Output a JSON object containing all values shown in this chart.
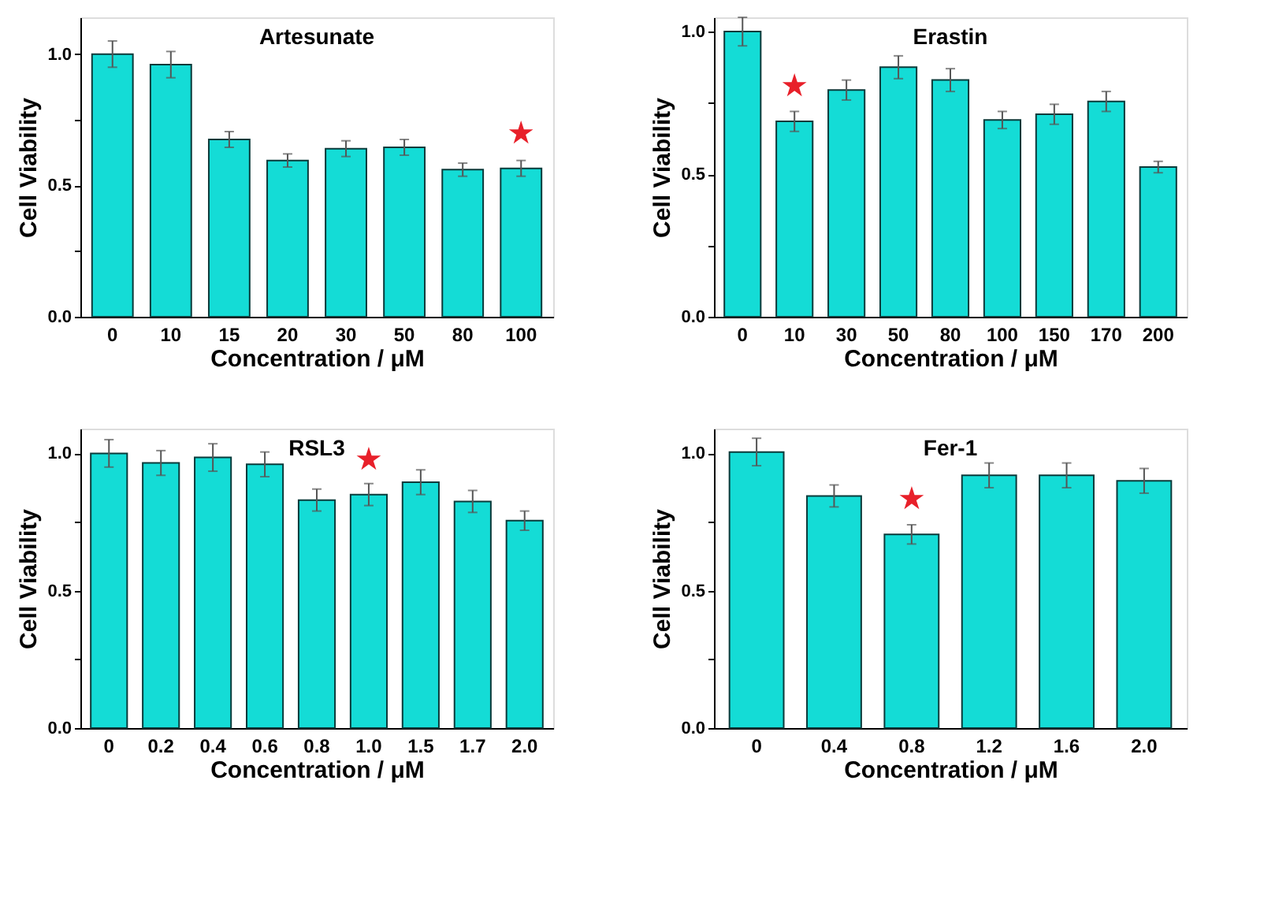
{
  "chart_data": [
    {
      "type": "bar",
      "title": "Artesunate",
      "xlabel": "Concentration / μM",
      "ylabel": "Cell Viability",
      "categories": [
        "0",
        "10",
        "15",
        "20",
        "30",
        "50",
        "80",
        "100"
      ],
      "series": [
        {
          "color": "#14dcd6",
          "values": [
            1.0,
            0.96,
            0.675,
            0.595,
            0.64,
            0.645,
            0.56,
            0.565
          ],
          "errors": [
            0.05,
            0.05,
            0.03,
            0.025,
            0.03,
            0.03,
            0.025,
            0.03
          ]
        }
      ],
      "ylim": [
        0,
        1.14
      ],
      "yticks": [
        {
          "value": 0,
          "label": "0.0"
        },
        {
          "value": 0.25,
          "label": null
        },
        {
          "value": 0.5,
          "label": "0.5"
        },
        {
          "value": 0.75,
          "label": null
        },
        {
          "value": 1.0,
          "label": "1.0"
        }
      ],
      "annotations": [
        {
          "text": "★",
          "x": "100",
          "y": 0.565
        }
      ],
      "grid": false
    },
    {
      "type": "bar",
      "title": "Erastin",
      "xlabel": "Concentration / μM",
      "ylabel": "Cell Viability",
      "categories": [
        "0",
        "10",
        "30",
        "50",
        "80",
        "100",
        "150",
        "170",
        "200"
      ],
      "series": [
        {
          "color": "#14dcd6",
          "values": [
            1.0,
            0.685,
            0.795,
            0.875,
            0.83,
            0.69,
            0.71,
            0.755,
            0.525
          ],
          "errors": [
            0.05,
            0.035,
            0.035,
            0.04,
            0.04,
            0.03,
            0.035,
            0.035,
            0.02
          ]
        }
      ],
      "ylim": [
        0,
        1.05
      ],
      "yticks": [
        {
          "value": 0,
          "label": "0.0"
        },
        {
          "value": 0.25,
          "label": null
        },
        {
          "value": 0.5,
          "label": "0.5"
        },
        {
          "value": 0.75,
          "label": null
        },
        {
          "value": 1.0,
          "label": "1.0"
        }
      ],
      "annotations": [
        {
          "text": "★",
          "x": "10",
          "y": 0.685
        }
      ],
      "grid": false
    },
    {
      "type": "bar",
      "title": "RSL3",
      "xlabel": "Concentration / μM",
      "ylabel": "Cell Viability",
      "categories": [
        "0",
        "0.2",
        "0.4",
        "0.6",
        "0.8",
        "1.0",
        "1.5",
        "1.7",
        "2.0"
      ],
      "series": [
        {
          "color": "#14dcd6",
          "values": [
            1.0,
            0.965,
            0.985,
            0.96,
            0.83,
            0.85,
            0.895,
            0.825,
            0.755
          ],
          "errors": [
            0.05,
            0.045,
            0.05,
            0.045,
            0.04,
            0.04,
            0.045,
            0.04,
            0.035
          ]
        }
      ],
      "ylim": [
        0,
        1.09
      ],
      "yticks": [
        {
          "value": 0,
          "label": "0.0"
        },
        {
          "value": 0.25,
          "label": null
        },
        {
          "value": 0.5,
          "label": "0.5"
        },
        {
          "value": 0.75,
          "label": null
        },
        {
          "value": 1.0,
          "label": "1.0"
        }
      ],
      "annotations": [
        {
          "text": "★",
          "x": "1.0",
          "y": 0.85
        }
      ],
      "grid": false
    },
    {
      "type": "bar",
      "title": "Fer-1",
      "xlabel": "Concentration / μM",
      "ylabel": "Cell Viability",
      "categories": [
        "0",
        "0.4",
        "0.8",
        "1.2",
        "1.6",
        "2.0"
      ],
      "series": [
        {
          "color": "#14dcd6",
          "values": [
            1.005,
            0.845,
            0.705,
            0.92,
            0.92,
            0.9
          ],
          "errors": [
            0.05,
            0.04,
            0.035,
            0.045,
            0.045,
            0.045
          ]
        }
      ],
      "ylim": [
        0,
        1.09
      ],
      "yticks": [
        {
          "value": 0,
          "label": "0.0"
        },
        {
          "value": 0.25,
          "label": null
        },
        {
          "value": 0.5,
          "label": "0.5"
        },
        {
          "value": 0.75,
          "label": null
        },
        {
          "value": 1.0,
          "label": "1.0"
        }
      ],
      "annotations": [
        {
          "text": "★",
          "x": "0.8",
          "y": 0.705
        }
      ],
      "grid": false
    }
  ]
}
